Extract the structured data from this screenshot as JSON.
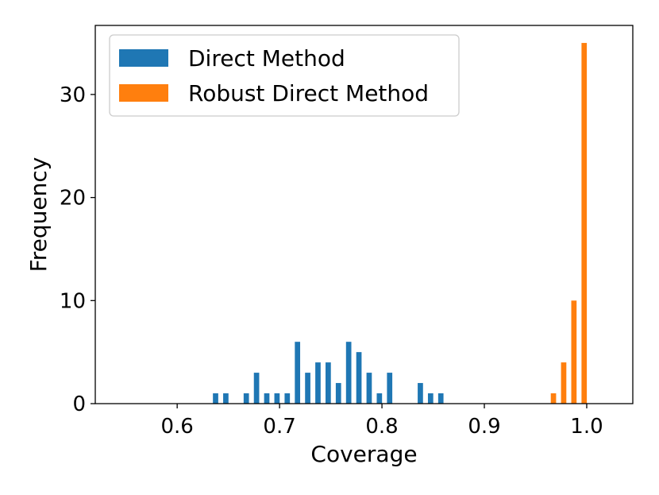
{
  "chart_data": {
    "type": "bar",
    "xlabel": "Coverage",
    "ylabel": "Frequency",
    "xlim": [
      0.52,
      1.045
    ],
    "ylim": [
      0,
      36.7
    ],
    "x_ticks": [
      "0.6",
      "0.7",
      "0.8",
      "0.9",
      "1.0"
    ],
    "y_ticks": [
      "0",
      "10",
      "20",
      "30"
    ],
    "grid": false,
    "legend_position": "upper-left",
    "series": [
      {
        "name": "Direct Method",
        "color": "#1f77b4",
        "x": [
          0.6375,
          0.6475,
          0.6675,
          0.6775,
          0.6875,
          0.6975,
          0.7075,
          0.7175,
          0.7275,
          0.7375,
          0.7475,
          0.7575,
          0.7675,
          0.7775,
          0.7875,
          0.7975,
          0.8075,
          0.8375,
          0.8475,
          0.8575
        ],
        "values": [
          1,
          1,
          1,
          3,
          1,
          1,
          1,
          6,
          3,
          4,
          4,
          2,
          6,
          5,
          3,
          1,
          3,
          2,
          1,
          1
        ]
      },
      {
        "name": "Robust Direct Method",
        "color": "#ff7f0e",
        "x": [
          0.9675,
          0.9775,
          0.9875,
          0.9975
        ],
        "values": [
          1,
          4,
          10,
          35
        ]
      }
    ]
  }
}
